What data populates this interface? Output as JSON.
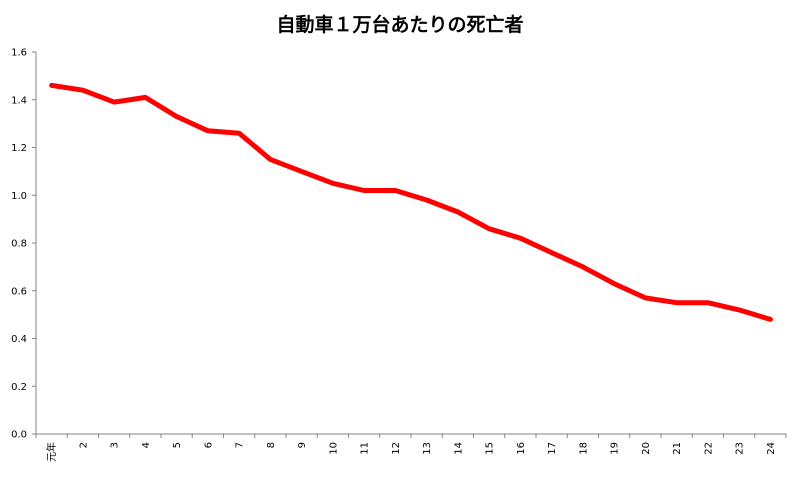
{
  "chart_data": {
    "type": "line",
    "title": "自動車１万台あたりの死亡者",
    "xlabel": "",
    "ylabel": "",
    "categories": [
      "元年",
      "2",
      "3",
      "4",
      "5",
      "6",
      "7",
      "8",
      "9",
      "10",
      "11",
      "12",
      "13",
      "14",
      "15",
      "16",
      "17",
      "18",
      "19",
      "20",
      "21",
      "22",
      "23",
      "24"
    ],
    "series": [
      {
        "values": [
          1.46,
          1.44,
          1.39,
          1.41,
          1.33,
          1.27,
          1.26,
          1.15,
          1.1,
          1.05,
          1.02,
          1.02,
          0.98,
          0.93,
          0.86,
          0.82,
          0.76,
          0.7,
          0.63,
          0.57,
          0.55,
          0.55,
          0.52,
          0.48
        ],
        "color": "#ff0000"
      }
    ],
    "ylim": [
      0,
      1.6
    ],
    "yticks": [
      "0.0",
      "0.2",
      "0.4",
      "0.6",
      "0.8",
      "1.0",
      "1.2",
      "1.4",
      "1.6"
    ],
    "grid": false,
    "legend": "none"
  }
}
